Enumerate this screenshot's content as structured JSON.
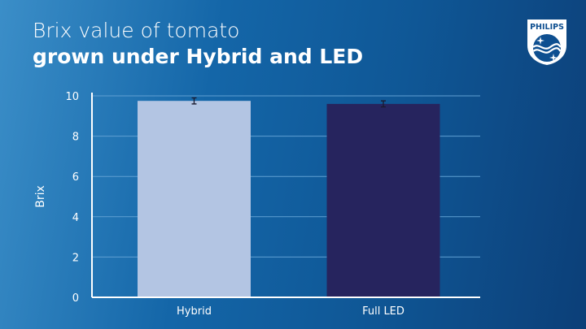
{
  "header": {
    "title_line1": "Brix value of tomato",
    "title_line2": "grown under Hybrid and LED"
  },
  "logo": {
    "text": "PHILIPS"
  },
  "chart_data": {
    "type": "bar",
    "title": "Brix value of tomato grown under Hybrid and LED",
    "xlabel": "",
    "ylabel": "Brix",
    "ylim": [
      0,
      10
    ],
    "yticks": [
      0,
      2,
      4,
      6,
      8,
      10
    ],
    "grid": true,
    "categories": [
      "Hybrid",
      "Full LED"
    ],
    "values": [
      9.75,
      9.6
    ],
    "error": [
      0.15,
      0.15
    ],
    "colors": [
      "#b3c5e3",
      "#26245e"
    ],
    "error_color": "#1a1a2e",
    "grid_color": "#5f9fd2"
  }
}
